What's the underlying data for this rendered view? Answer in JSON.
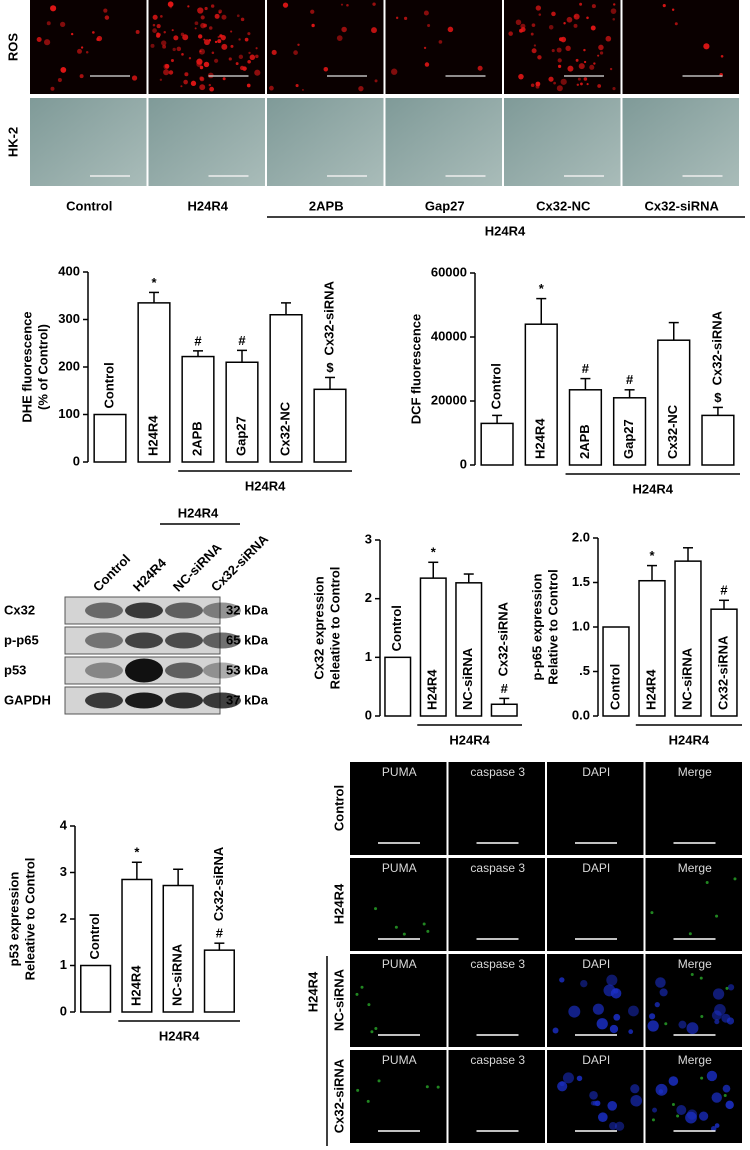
{
  "micrographs": {
    "row_labels": [
      "ROS",
      "HK-2"
    ],
    "column_labels": [
      "Control",
      "H24R4",
      "2APB",
      "Gap27",
      "Cx32-NC",
      "Cx32-siRNA"
    ],
    "group_label": "H24R4"
  },
  "chart_data": [
    {
      "type": "bar",
      "ylabel": [
        "DHE fluorescence",
        "(% of Control)"
      ],
      "categories": [
        "Control",
        "H24R4",
        "2APB",
        "Gap27",
        "Cx32-NC",
        "Cx32-siRNA"
      ],
      "values": [
        100,
        335,
        222,
        210,
        310,
        153
      ],
      "errors": [
        0,
        22,
        12,
        25,
        25,
        25
      ],
      "annotations": [
        null,
        "*",
        "#",
        "#",
        null,
        "$"
      ],
      "color": "#ffffff",
      "ylim": [
        0,
        400
      ],
      "yticks": [
        0,
        100,
        200,
        300,
        400
      ],
      "group_label": "H24R4"
    },
    {
      "type": "bar",
      "ylabel": [
        "DCF fluorescence"
      ],
      "categories": [
        "Control",
        "H24R4",
        "2APB",
        "Gap27",
        "Cx32-NC",
        "Cx32-siRNA"
      ],
      "values": [
        13000,
        44000,
        23500,
        21000,
        39000,
        15500
      ],
      "errors": [
        2500,
        8000,
        3500,
        2500,
        5500,
        2500
      ],
      "annotations": [
        null,
        "*",
        "#",
        "#",
        null,
        "$"
      ],
      "color": "#ffffff",
      "ylim": [
        0,
        60000
      ],
      "yticks": [
        0,
        20000,
        40000,
        60000
      ],
      "group_label": "H24R4"
    },
    {
      "type": "bar",
      "ylabel": [
        "Cx32 expression",
        "Releative to Control"
      ],
      "categories": [
        "Control",
        "H24R4",
        "NC-siRNA",
        "Cx32-siRNA"
      ],
      "values": [
        1,
        2.35,
        2.27,
        0.2
      ],
      "errors": [
        0,
        0.27,
        0.15,
        0.1
      ],
      "annotations": [
        null,
        "*",
        null,
        "#"
      ],
      "color": "#ffffff",
      "ylim": [
        0,
        3
      ],
      "yticks": [
        0,
        1,
        2,
        3
      ],
      "group_label": "H24R4"
    },
    {
      "type": "bar",
      "ylabel": [
        "p-p65 expression",
        "Relative to Control"
      ],
      "categories": [
        "Control",
        "H24R4",
        "NC-siRNA",
        "Cx32-siRNA"
      ],
      "values": [
        1,
        1.52,
        1.74,
        1.2
      ],
      "errors": [
        0,
        0.17,
        0.15,
        0.1
      ],
      "annotations": [
        null,
        "*",
        null,
        "#"
      ],
      "color": "#ffffff",
      "ylim": [
        0,
        2
      ],
      "yticks": [
        {
          "value": 0,
          "label": "0.0"
        },
        {
          "value": 0.5,
          "label": ".5"
        },
        {
          "value": 1,
          "label": "1.0"
        },
        {
          "value": 1.5,
          "label": "1.5"
        },
        {
          "value": 2,
          "label": "2.0"
        }
      ],
      "group_label": "H24R4"
    },
    {
      "type": "bar",
      "ylabel": [
        "p53 expression",
        "Releative to Control"
      ],
      "categories": [
        "Control",
        "H24R4",
        "NC-siRNA",
        "Cx32-siRNA"
      ],
      "values": [
        1,
        2.85,
        2.72,
        1.33
      ],
      "errors": [
        0,
        0.37,
        0.35,
        0.15
      ],
      "annotations": [
        null,
        "*",
        null,
        "#"
      ],
      "color": "#ffffff",
      "ylim": [
        0,
        4
      ],
      "yticks": [
        0,
        1,
        2,
        3,
        4
      ],
      "group_label": "H24R4"
    }
  ],
  "western_blot": {
    "group_label": "H24R4",
    "column_labels": [
      "Control",
      "H24R4",
      "NC-siRNA",
      "Cx32-siRNA"
    ],
    "rows": [
      {
        "protein": "Cx32",
        "size": "32 kDa"
      },
      {
        "protein": "p-p65",
        "size": "65 kDa"
      },
      {
        "protein": "p53",
        "size": "53 kDa"
      },
      {
        "protein": "GAPDH",
        "size": "37 kDa"
      }
    ]
  },
  "immunofluorescence": {
    "column_labels": [
      "PUMA",
      "caspase 3",
      "DAPI",
      "Merge"
    ],
    "row_labels": [
      "Control",
      "H24R4",
      "NC-siRNA",
      "Cx32-siRNA"
    ],
    "group_label": "H24R4"
  }
}
